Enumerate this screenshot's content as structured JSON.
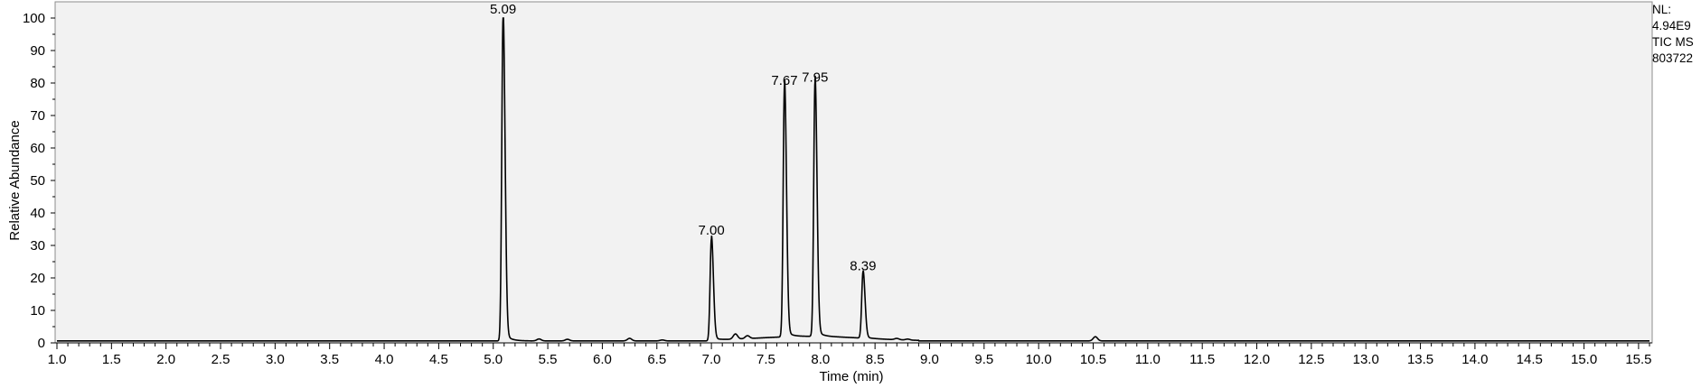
{
  "chart_data": {
    "type": "line",
    "xlabel": "Time (min)",
    "ylabel": "Relative Abundance",
    "xlim": [
      1.0,
      15.6
    ],
    "ylim": [
      0,
      100
    ],
    "x_ticks": [
      "1.0",
      "1.5",
      "2.0",
      "2.5",
      "3.0",
      "3.5",
      "4.0",
      "4.5",
      "5.0",
      "5.5",
      "6.0",
      "6.5",
      "7.0",
      "7.5",
      "8.0",
      "8.5",
      "9.0",
      "9.5",
      "10.0",
      "10.5",
      "11.0",
      "11.5",
      "12.0",
      "12.5",
      "13.0",
      "13.5",
      "14.0",
      "14.5",
      "15.0",
      "15.5"
    ],
    "y_ticks": [
      "0",
      "10",
      "20",
      "30",
      "40",
      "50",
      "60",
      "70",
      "80",
      "90",
      "100"
    ],
    "grid": false,
    "colors": {
      "line": "#000000",
      "plot_background": "#f2f2f2",
      "frame": "#8c8c8c"
    },
    "series": [
      {
        "peaks": [
          {
            "label": "5.09",
            "x": 5.09,
            "y": 100
          },
          {
            "label": "7.00",
            "x": 7.0,
            "y": 32
          },
          {
            "label": "7.67",
            "x": 7.67,
            "y": 78
          },
          {
            "label": "7.95",
            "x": 7.95,
            "y": 79
          },
          {
            "label": "8.39",
            "x": 8.39,
            "y": 21
          }
        ],
        "baseline": 0.6
      }
    ],
    "annotations": [
      "NL:",
      "4.94E9",
      "TIC  MS",
      "803722"
    ]
  }
}
